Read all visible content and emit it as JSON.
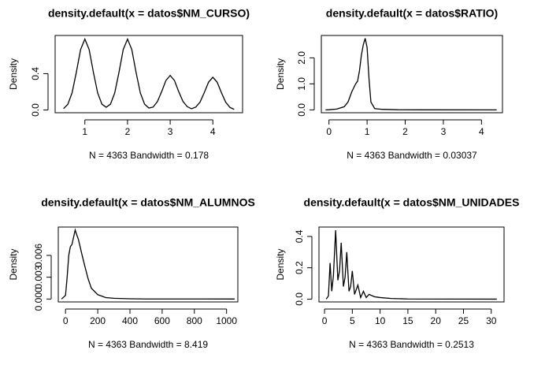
{
  "chart_data": [
    {
      "type": "line",
      "title": "density.default(x = datos$NM_CURSO)",
      "subtitle": "N = 4363   Bandwidth = 0.178",
      "ylabel": "Density",
      "color": "#000000",
      "x": [
        0.5,
        0.6,
        0.7,
        0.8,
        0.9,
        1.0,
        1.1,
        1.2,
        1.3,
        1.4,
        1.5,
        1.6,
        1.7,
        1.8,
        1.9,
        2.0,
        2.1,
        2.2,
        2.3,
        2.4,
        2.5,
        2.6,
        2.7,
        2.8,
        2.9,
        3.0,
        3.1,
        3.2,
        3.3,
        3.4,
        3.5,
        3.6,
        3.7,
        3.8,
        3.9,
        4.0,
        4.1,
        4.2,
        4.3,
        4.4,
        4.5
      ],
      "values": [
        0.015,
        0.062,
        0.188,
        0.415,
        0.666,
        0.78,
        0.666,
        0.415,
        0.188,
        0.064,
        0.03,
        0.064,
        0.188,
        0.415,
        0.666,
        0.78,
        0.666,
        0.415,
        0.188,
        0.064,
        0.022,
        0.032,
        0.092,
        0.202,
        0.325,
        0.38,
        0.325,
        0.202,
        0.094,
        0.037,
        0.014,
        0.032,
        0.087,
        0.192,
        0.307,
        0.36,
        0.307,
        0.192,
        0.087,
        0.029,
        0.007
      ],
      "xlim": [
        0.303,
        4.697
      ],
      "ylim": [
        -0.03,
        0.82
      ],
      "xticks": [
        1,
        2,
        3,
        4
      ],
      "yticks": [
        {
          "value": 0,
          "label": "0.0"
        },
        {
          "value": 0.4,
          "label": "0.4"
        }
      ]
    },
    {
      "type": "line",
      "title": "density.default(x = datos$RATIO)",
      "subtitle": "N = 4363   Bandwidth = 0.03037",
      "ylabel": "Density",
      "color": "#000000",
      "x": [
        -0.09,
        0,
        0.2,
        0.4,
        0.5,
        0.6,
        0.7,
        0.75,
        0.8,
        0.85,
        0.9,
        0.95,
        1.0,
        1.05,
        1.1,
        1.2,
        1.4,
        1.8,
        2.5,
        4.4
      ],
      "values": [
        0,
        0.005,
        0.03,
        0.12,
        0.3,
        0.7,
        1.0,
        1.1,
        1.5,
        2.1,
        2.5,
        2.75,
        2.4,
        1.2,
        0.3,
        0.05,
        0.02,
        0.005,
        0.002,
        0
      ],
      "xlim": [
        -0.2,
        4.55
      ],
      "ylim": [
        -0.11,
        2.86
      ],
      "xticks": [
        0,
        1,
        2,
        3,
        4
      ],
      "yticks": [
        {
          "value": 0,
          "label": "0.0"
        },
        {
          "value": 1,
          "label": "1.0"
        },
        {
          "value": 2,
          "label": "2.0"
        }
      ]
    },
    {
      "type": "line",
      "title": "density.default(x = datos$NM_ALUMNOS",
      "subtitle": "N = 4363   Bandwidth = 8.419",
      "ylabel": "Density",
      "color": "#000000",
      "x": [
        -25,
        0,
        10,
        20,
        30,
        40,
        50,
        60,
        70,
        80,
        100,
        120,
        140,
        160,
        200,
        250,
        300,
        400,
        500,
        1050
      ],
      "values": [
        0,
        0.0005,
        0.003,
        0.006,
        0.0072,
        0.0075,
        0.0085,
        0.0095,
        0.0088,
        0.0082,
        0.0063,
        0.0045,
        0.0028,
        0.0015,
        0.0006,
        0.0002,
        0.0001,
        3e-05,
        1e-05,
        0
      ],
      "xlim": [
        -45,
        1070
      ],
      "ylim": [
        -0.0004,
        0.0099
      ],
      "xticks": [
        0,
        200,
        400,
        600,
        800,
        1000
      ],
      "yticks": [
        {
          "value": 0,
          "label": "0.000"
        },
        {
          "value": 0.003,
          "label": "0.003"
        },
        {
          "value": 0.006,
          "label": "0.006"
        }
      ]
    },
    {
      "type": "line",
      "title": "density.default(x = datos$NM_UNIDADES",
      "subtitle": "N = 4363   Bandwidth = 0.2513",
      "ylabel": "Density",
      "color": "#000000",
      "x": [
        0.3,
        0.7,
        1,
        1.3,
        1.6,
        2,
        2.4,
        2.7,
        3,
        3.4,
        3.7,
        4,
        4.4,
        4.7,
        5,
        5.4,
        6,
        6.5,
        7,
        7.5,
        8,
        9,
        10,
        12,
        15,
        31
      ],
      "values": [
        0,
        0.02,
        0.23,
        0.05,
        0.15,
        0.44,
        0.12,
        0.18,
        0.36,
        0.08,
        0.14,
        0.3,
        0.05,
        0.08,
        0.18,
        0.03,
        0.09,
        0.01,
        0.05,
        0.01,
        0.03,
        0.015,
        0.01,
        0.004,
        0.001,
        0
      ],
      "xlim": [
        -1,
        32.3
      ],
      "ylim": [
        -0.018,
        0.46
      ],
      "xticks": [
        0,
        5,
        10,
        15,
        20,
        25,
        30
      ],
      "yticks": [
        {
          "value": 0,
          "label": "0.0"
        },
        {
          "value": 0.2,
          "label": "0.2"
        },
        {
          "value": 0.4,
          "label": "0.4"
        }
      ]
    }
  ]
}
